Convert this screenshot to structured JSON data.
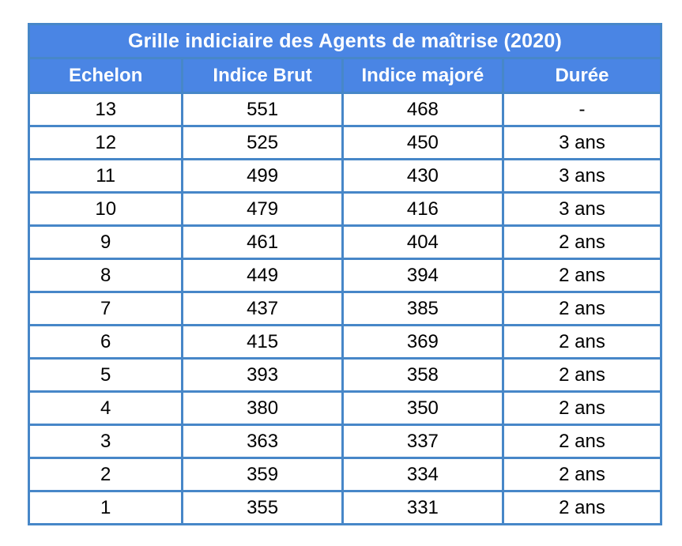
{
  "chart_data": {
    "type": "table",
    "title": "Grille indiciaire des Agents de maîtrise (2020)",
    "columns": [
      "Echelon",
      "Indice Brut",
      "Indice majoré",
      "Durée"
    ],
    "rows": [
      [
        "13",
        "551",
        "468",
        "-"
      ],
      [
        "12",
        "525",
        "450",
        "3 ans"
      ],
      [
        "11",
        "499",
        "430",
        "3 ans"
      ],
      [
        "10",
        "479",
        "416",
        "3 ans"
      ],
      [
        "9",
        "461",
        "404",
        "2 ans"
      ],
      [
        "8",
        "449",
        "394",
        "2 ans"
      ],
      [
        "7",
        "437",
        "385",
        "2 ans"
      ],
      [
        "6",
        "415",
        "369",
        "2 ans"
      ],
      [
        "5",
        "393",
        "358",
        "2 ans"
      ],
      [
        "4",
        "380",
        "350",
        "2 ans"
      ],
      [
        "3",
        "363",
        "337",
        "2 ans"
      ],
      [
        "2",
        "359",
        "334",
        "2 ans"
      ],
      [
        "1",
        "355",
        "331",
        "2 ans"
      ]
    ],
    "layout": {
      "grid": "full-borders",
      "header_rows": 2,
      "alignment": "center"
    }
  },
  "colors": {
    "header_bg": "#4a85e4",
    "border": "#4787c8",
    "header_text": "#ffffff",
    "cell_text": "#000000",
    "row_bg": "#ffffff"
  }
}
